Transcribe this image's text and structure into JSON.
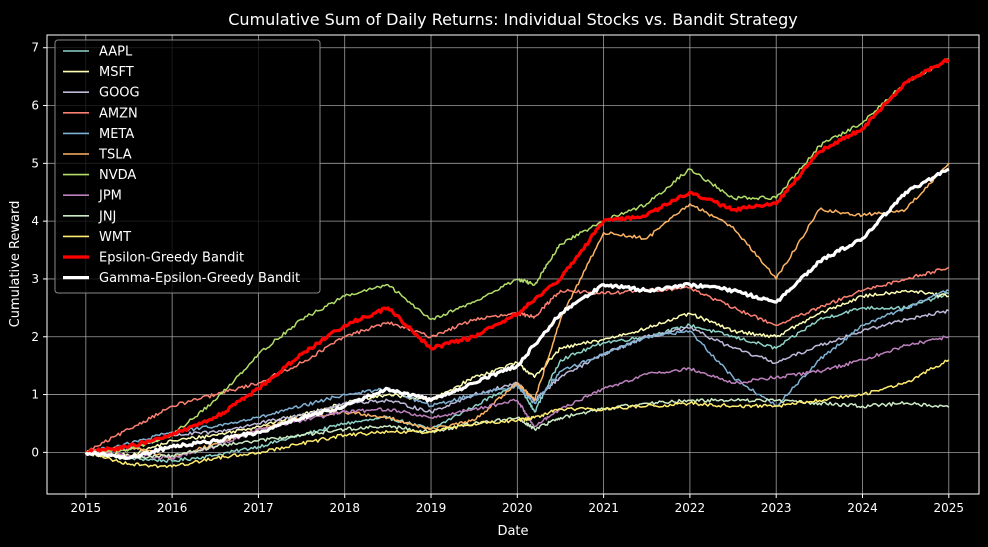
{
  "chart_data": {
    "type": "line",
    "title": "Cumulative Sum of Daily Returns: Individual Stocks vs. Bandit Strategy",
    "xlabel": "Date",
    "ylabel": "Cumulative Reward",
    "xlim": [
      2014.55,
      2025.35
    ],
    "ylim": [
      -0.72,
      7.22
    ],
    "xticks": [
      "2015",
      "2016",
      "2017",
      "2018",
      "2019",
      "2020",
      "2021",
      "2022",
      "2023",
      "2024",
      "2025"
    ],
    "yticks": [
      "0",
      "1",
      "2",
      "3",
      "4",
      "5",
      "6",
      "7"
    ],
    "grid": true,
    "legend_position": "top-left",
    "series": [
      {
        "name": "AAPL",
        "color": "#8dd3c7",
        "x": [
          2015.0,
          2015.5,
          2016.0,
          2016.5,
          2017.0,
          2017.5,
          2018.0,
          2018.5,
          2019.0,
          2019.5,
          2020.0,
          2020.2,
          2020.5,
          2021.0,
          2021.5,
          2022.0,
          2022.5,
          2023.0,
          2023.5,
          2024.0,
          2024.5,
          2025.0
        ],
        "y": [
          0.0,
          -0.1,
          -0.15,
          -0.05,
          0.1,
          0.3,
          0.5,
          0.6,
          0.4,
          0.8,
          1.2,
          0.7,
          1.6,
          1.9,
          2.0,
          2.2,
          2.0,
          1.8,
          2.3,
          2.5,
          2.5,
          2.75
        ]
      },
      {
        "name": "MSFT",
        "color": "#ffffb3",
        "x": [
          2015.0,
          2015.5,
          2016.0,
          2016.5,
          2017.0,
          2017.5,
          2018.0,
          2018.5,
          2019.0,
          2019.5,
          2020.0,
          2020.2,
          2020.5,
          2021.0,
          2021.5,
          2022.0,
          2022.5,
          2023.0,
          2023.5,
          2024.0,
          2024.5,
          2025.0
        ],
        "y": [
          0.0,
          -0.05,
          0.2,
          0.3,
          0.45,
          0.65,
          0.85,
          1.0,
          0.9,
          1.3,
          1.55,
          1.3,
          1.8,
          1.95,
          2.15,
          2.4,
          2.1,
          2.0,
          2.4,
          2.7,
          2.8,
          2.7
        ]
      },
      {
        "name": "GOOG",
        "color": "#bebada",
        "x": [
          2015.0,
          2015.5,
          2016.0,
          2016.5,
          2017.0,
          2017.5,
          2018.0,
          2018.5,
          2019.0,
          2019.5,
          2020.0,
          2020.2,
          2020.5,
          2021.0,
          2021.5,
          2022.0,
          2022.5,
          2023.0,
          2023.5,
          2024.0,
          2024.5,
          2025.0
        ],
        "y": [
          0.0,
          0.05,
          0.3,
          0.35,
          0.5,
          0.65,
          0.85,
          0.9,
          0.7,
          1.0,
          1.2,
          0.9,
          1.3,
          1.7,
          2.0,
          2.15,
          1.8,
          1.55,
          1.85,
          2.1,
          2.3,
          2.45
        ]
      },
      {
        "name": "AMZN",
        "color": "#fb8072",
        "x": [
          2015.0,
          2015.5,
          2016.0,
          2016.5,
          2017.0,
          2017.5,
          2018.0,
          2018.5,
          2019.0,
          2019.5,
          2020.0,
          2020.2,
          2020.5,
          2021.0,
          2021.5,
          2022.0,
          2022.5,
          2023.0,
          2023.5,
          2024.0,
          2024.5,
          2025.0
        ],
        "y": [
          0.0,
          0.4,
          0.8,
          1.0,
          1.2,
          1.55,
          2.0,
          2.25,
          2.0,
          2.3,
          2.4,
          2.35,
          2.8,
          2.75,
          2.8,
          2.85,
          2.5,
          2.2,
          2.5,
          2.8,
          3.0,
          3.2
        ]
      },
      {
        "name": "META",
        "color": "#80b1d3",
        "x": [
          2015.0,
          2015.5,
          2016.0,
          2016.5,
          2017.0,
          2017.5,
          2018.0,
          2018.5,
          2019.0,
          2019.5,
          2020.0,
          2020.2,
          2020.5,
          2021.0,
          2021.5,
          2022.0,
          2022.5,
          2023.0,
          2023.5,
          2024.0,
          2024.5,
          2025.0
        ],
        "y": [
          0.0,
          0.15,
          0.35,
          0.45,
          0.6,
          0.8,
          1.0,
          1.1,
          0.8,
          1.0,
          1.15,
          0.85,
          1.4,
          1.7,
          2.0,
          2.1,
          1.3,
          0.8,
          1.6,
          2.2,
          2.5,
          2.8
        ]
      },
      {
        "name": "TSLA",
        "color": "#fdb462",
        "x": [
          2015.0,
          2015.5,
          2016.0,
          2016.5,
          2017.0,
          2017.5,
          2018.0,
          2018.5,
          2019.0,
          2019.5,
          2020.0,
          2020.2,
          2020.5,
          2021.0,
          2021.5,
          2022.0,
          2022.5,
          2023.0,
          2023.5,
          2024.0,
          2024.5,
          2025.0
        ],
        "y": [
          0.0,
          0.1,
          -0.1,
          0.15,
          0.4,
          0.6,
          0.7,
          0.6,
          0.4,
          0.55,
          1.2,
          0.9,
          2.3,
          3.8,
          3.7,
          4.3,
          3.9,
          3.0,
          4.2,
          4.1,
          4.2,
          5.0
        ]
      },
      {
        "name": "NVDA",
        "color": "#b3de69",
        "x": [
          2015.0,
          2015.5,
          2016.0,
          2016.5,
          2017.0,
          2017.5,
          2018.0,
          2018.5,
          2019.0,
          2019.5,
          2020.0,
          2020.2,
          2020.5,
          2021.0,
          2021.5,
          2022.0,
          2022.5,
          2023.0,
          2023.5,
          2024.0,
          2024.5,
          2025.0
        ],
        "y": [
          0.0,
          0.05,
          0.3,
          0.9,
          1.7,
          2.3,
          2.7,
          2.9,
          2.3,
          2.6,
          3.0,
          2.9,
          3.6,
          4.0,
          4.3,
          4.9,
          4.4,
          4.4,
          5.3,
          5.7,
          6.4,
          6.8
        ]
      },
      {
        "name": "JPM",
        "color": "#bc80bd",
        "x": [
          2015.0,
          2015.5,
          2016.0,
          2016.5,
          2017.0,
          2017.5,
          2018.0,
          2018.5,
          2019.0,
          2019.5,
          2020.0,
          2020.2,
          2020.5,
          2021.0,
          2021.5,
          2022.0,
          2022.5,
          2023.0,
          2023.5,
          2024.0,
          2024.5,
          2025.0
        ],
        "y": [
          0.0,
          -0.05,
          -0.1,
          0.1,
          0.4,
          0.55,
          0.7,
          0.75,
          0.6,
          0.75,
          0.9,
          0.45,
          0.75,
          1.1,
          1.35,
          1.45,
          1.2,
          1.3,
          1.4,
          1.6,
          1.85,
          2.0
        ]
      },
      {
        "name": "JNJ",
        "color": "#ccebc5",
        "x": [
          2015.0,
          2015.5,
          2016.0,
          2016.5,
          2017.0,
          2017.5,
          2018.0,
          2018.5,
          2019.0,
          2019.5,
          2020.0,
          2020.2,
          2020.5,
          2021.0,
          2021.5,
          2022.0,
          2022.5,
          2023.0,
          2023.5,
          2024.0,
          2024.5,
          2025.0
        ],
        "y": [
          0.0,
          -0.1,
          -0.05,
          0.1,
          0.2,
          0.3,
          0.4,
          0.45,
          0.35,
          0.5,
          0.6,
          0.4,
          0.6,
          0.75,
          0.85,
          0.9,
          0.9,
          0.9,
          0.85,
          0.8,
          0.85,
          0.78
        ]
      },
      {
        "name": "WMT",
        "color": "#ffed6f",
        "x": [
          2015.0,
          2015.5,
          2016.0,
          2016.5,
          2017.0,
          2017.5,
          2018.0,
          2018.5,
          2019.0,
          2019.5,
          2020.0,
          2020.2,
          2020.5,
          2021.0,
          2021.5,
          2022.0,
          2022.5,
          2023.0,
          2023.5,
          2024.0,
          2024.5,
          2025.0
        ],
        "y": [
          0.0,
          -0.2,
          -0.25,
          -0.1,
          0.0,
          0.15,
          0.3,
          0.35,
          0.35,
          0.5,
          0.55,
          0.6,
          0.75,
          0.75,
          0.8,
          0.85,
          0.8,
          0.8,
          0.9,
          1.0,
          1.2,
          1.6
        ]
      },
      {
        "name": "Epsilon-Greedy Bandit",
        "color": "#ff0000",
        "x": [
          2015.0,
          2015.5,
          2016.0,
          2016.5,
          2017.0,
          2017.5,
          2018.0,
          2018.5,
          2019.0,
          2019.5,
          2020.0,
          2020.5,
          2021.0,
          2021.5,
          2022.0,
          2022.5,
          2023.0,
          2023.5,
          2024.0,
          2024.5,
          2025.0
        ],
        "y": [
          0.0,
          0.1,
          0.3,
          0.6,
          1.1,
          1.7,
          2.2,
          2.5,
          1.8,
          2.0,
          2.4,
          3.0,
          4.0,
          4.1,
          4.5,
          4.2,
          4.3,
          5.2,
          5.6,
          6.4,
          6.8
        ]
      },
      {
        "name": "Gamma-Epsilon-Greedy Bandit",
        "color": "#ffffff",
        "x": [
          2015.0,
          2015.5,
          2016.0,
          2016.5,
          2017.0,
          2017.5,
          2018.0,
          2018.5,
          2019.0,
          2019.5,
          2020.0,
          2020.5,
          2021.0,
          2021.5,
          2022.0,
          2022.5,
          2023.0,
          2023.5,
          2024.0,
          2024.5,
          2025.0
        ],
        "y": [
          0.0,
          -0.1,
          0.1,
          0.2,
          0.35,
          0.6,
          0.8,
          1.1,
          0.9,
          1.2,
          1.5,
          2.4,
          2.9,
          2.8,
          2.9,
          2.8,
          2.6,
          3.3,
          3.7,
          4.5,
          4.9
        ]
      }
    ]
  }
}
